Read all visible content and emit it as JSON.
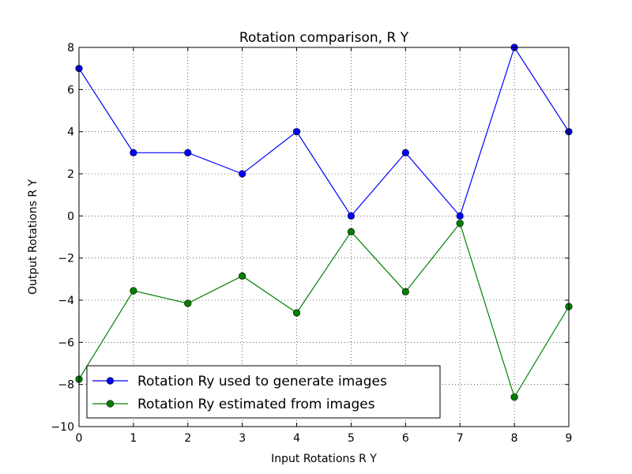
{
  "chart_data": {
    "type": "line",
    "title": "Rotation comparison, R Y",
    "xlabel": "Input Rotations R Y",
    "ylabel": "Output Rotations R Y",
    "xlim": [
      0,
      9
    ],
    "ylim": [
      -10,
      8
    ],
    "xticks": [
      0,
      1,
      2,
      3,
      4,
      5,
      6,
      7,
      8,
      9
    ],
    "yticks": [
      -10,
      -8,
      -6,
      -4,
      -2,
      0,
      2,
      4,
      6,
      8
    ],
    "xtick_labels": [
      "0",
      "1",
      "2",
      "3",
      "4",
      "5",
      "6",
      "7",
      "8",
      "9"
    ],
    "ytick_labels": [
      "−10",
      "−8",
      "−6",
      "−4",
      "−2",
      "0",
      "2",
      "4",
      "6",
      "8"
    ],
    "grid": true,
    "legend_position": "lower-left",
    "x": [
      0,
      1,
      2,
      3,
      4,
      5,
      6,
      7,
      8,
      9
    ],
    "series": [
      {
        "name": "Rotation Ry used to generate images",
        "color": "#0000ff",
        "values": [
          7,
          3,
          3,
          2,
          4,
          0,
          3,
          0,
          8,
          4
        ]
      },
      {
        "name": "Rotation Ry estimated from images",
        "color": "#008000",
        "values": [
          -7.75,
          -3.55,
          -4.15,
          -2.85,
          -4.6,
          -0.75,
          -3.6,
          -0.35,
          -8.6,
          -4.3
        ]
      }
    ]
  }
}
